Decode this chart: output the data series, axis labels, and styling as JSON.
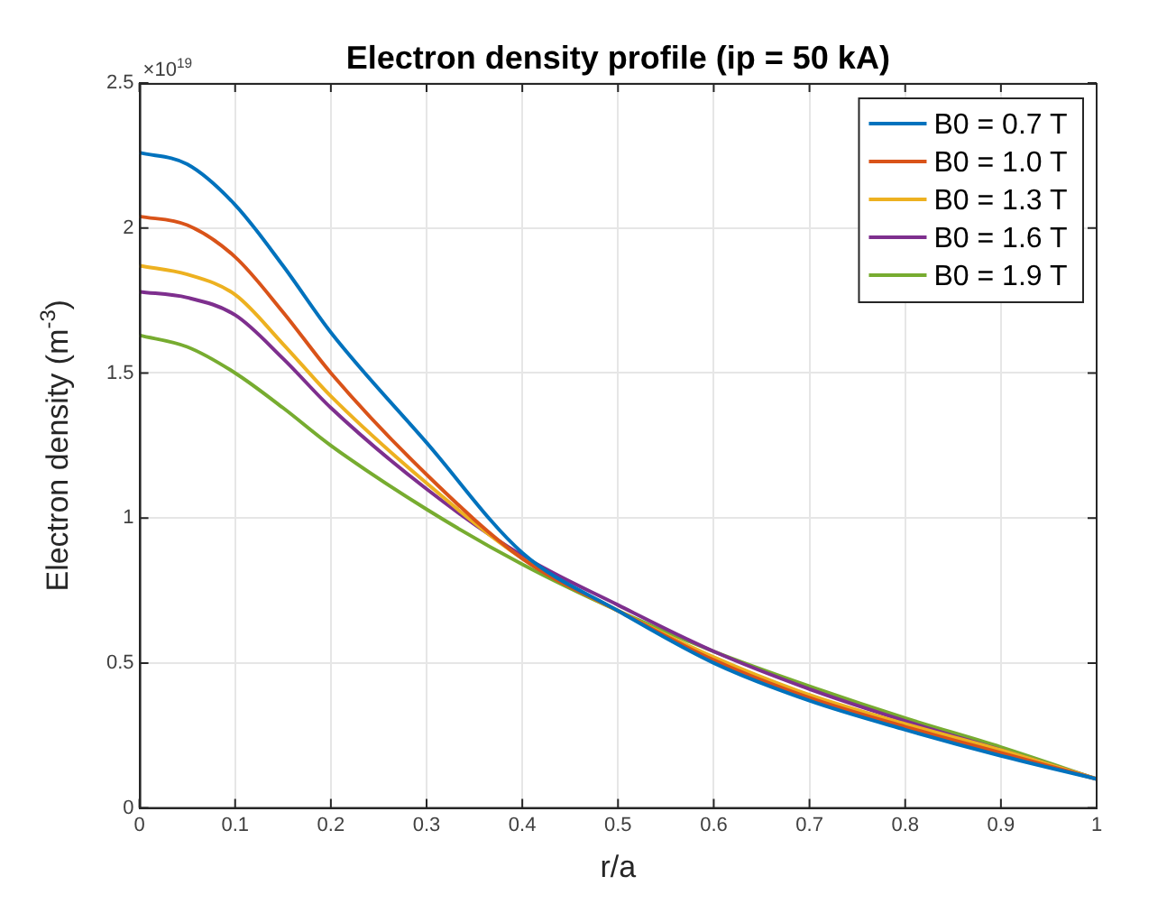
{
  "chart_data": {
    "type": "line",
    "title": "Electron density profile (ip = 50 kA)",
    "xlabel": "r/a",
    "ylabel": "Electron density (m$^{-3}$)",
    "annotations": [
      "×10$^{19}$"
    ],
    "x": [
      0,
      0.05,
      0.1,
      0.15,
      0.2,
      0.3,
      0.4,
      0.5,
      0.6,
      0.7,
      0.8,
      0.9,
      1
    ],
    "series": [
      {
        "name": "B0 = 0.7 T",
        "color": "#0072bd",
        "values": [
          2.26,
          2.22,
          2.08,
          1.87,
          1.64,
          1.26,
          0.88,
          0.68,
          0.5,
          0.37,
          0.27,
          0.18,
          0.1
        ]
      },
      {
        "name": "B0 = 1.0 T",
        "color": "#d95319",
        "values": [
          2.04,
          2.01,
          1.9,
          1.71,
          1.5,
          1.15,
          0.86,
          0.68,
          0.51,
          0.38,
          0.28,
          0.19,
          0.1
        ]
      },
      {
        "name": "B0 = 1.3 T",
        "color": "#edb120",
        "values": [
          1.87,
          1.84,
          1.77,
          1.6,
          1.42,
          1.12,
          0.86,
          0.68,
          0.52,
          0.39,
          0.29,
          0.2,
          0.1
        ]
      },
      {
        "name": "B0 = 1.6 T",
        "color": "#7e2f8e",
        "values": [
          1.78,
          1.76,
          1.7,
          1.55,
          1.38,
          1.1,
          0.87,
          0.7,
          0.54,
          0.41,
          0.3,
          0.2,
          0.1
        ]
      },
      {
        "name": "B0 = 1.9 T",
        "color": "#77ac30",
        "values": [
          1.63,
          1.59,
          1.5,
          1.38,
          1.25,
          1.03,
          0.84,
          0.68,
          0.54,
          0.42,
          0.31,
          0.21,
          0.1
        ]
      }
    ],
    "xlim": [
      0,
      1
    ],
    "xticks": [
      0,
      0.1,
      0.2,
      0.3,
      0.4,
      0.5,
      0.6,
      0.7,
      0.8,
      0.9,
      1
    ],
    "ylim": [
      0,
      2.5
    ],
    "yticks": [
      0,
      0.5,
      1,
      1.5,
      2,
      2.5
    ],
    "grid": true,
    "legend": "top right",
    "marker": "none",
    "line_style": "solid"
  }
}
